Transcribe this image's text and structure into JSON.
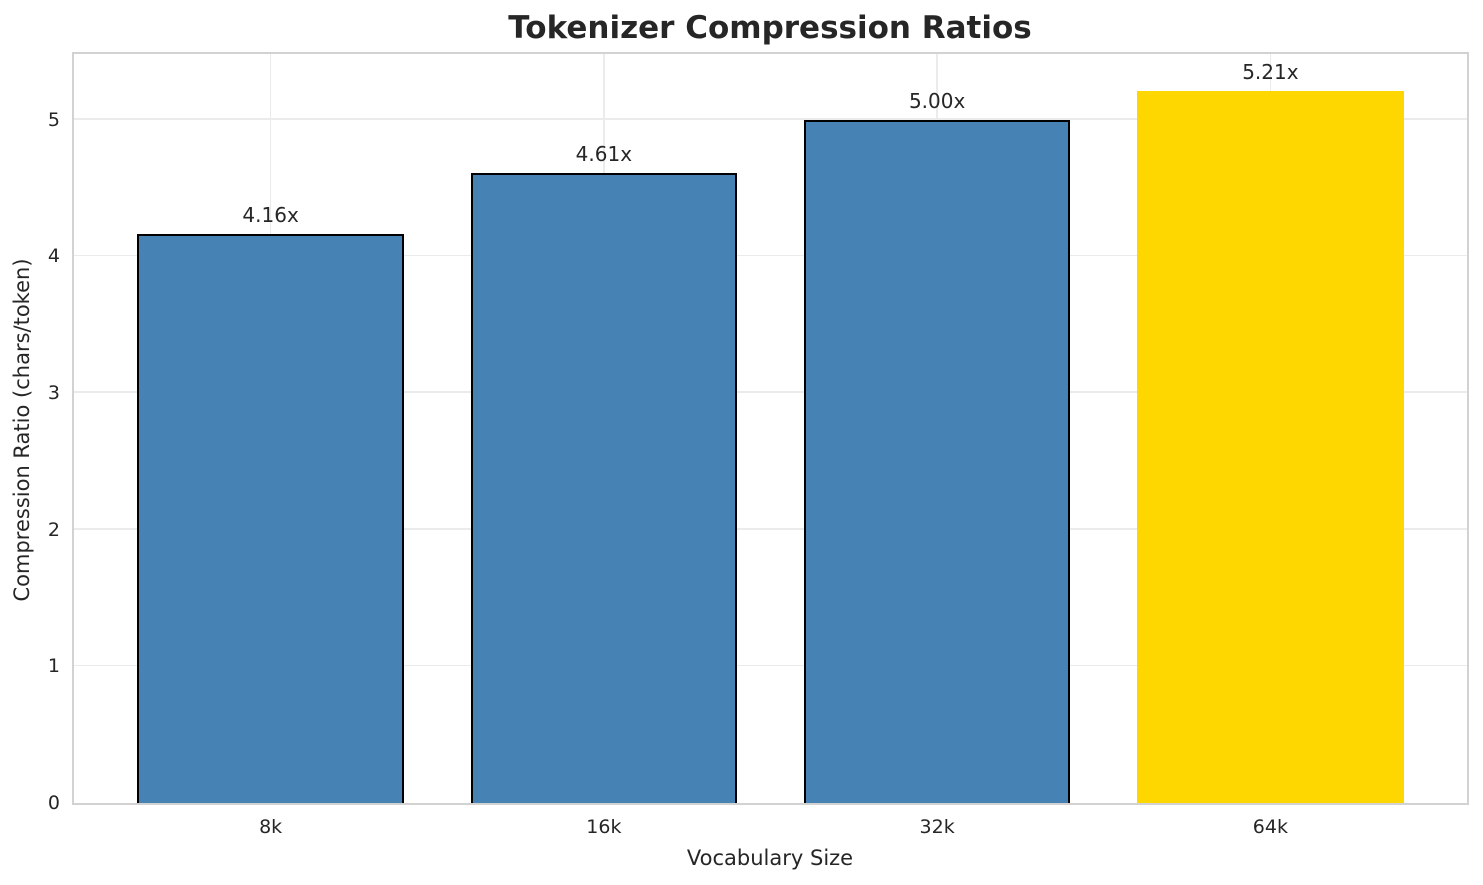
{
  "chart_data": {
    "type": "bar",
    "title": "Tokenizer Compression Ratios",
    "xlabel": "Vocabulary Size",
    "ylabel": "Compression Ratio (chars/token)",
    "categories": [
      "8k",
      "16k",
      "32k",
      "64k"
    ],
    "values": [
      4.16,
      4.61,
      5.0,
      5.21
    ],
    "value_labels": [
      "4.16x",
      "4.61x",
      "5.00x",
      "5.21x"
    ],
    "yticks": [
      0,
      1,
      2,
      3,
      4,
      5
    ],
    "ylim": [
      0,
      5.48
    ],
    "xlim": [
      -0.59,
      3.59
    ],
    "bar_width": 0.8,
    "grid": true,
    "legend": "none",
    "colors": {
      "bar_fill": [
        "#4682B4",
        "#4682B4",
        "#4682B4",
        "#FFD700"
      ],
      "bar_edge": [
        "#000000",
        "#000000",
        "#000000",
        "none"
      ],
      "text": "#262626",
      "grid": "#ebebeb",
      "spine": "#d2d2d2",
      "background": "#ffffff"
    }
  }
}
